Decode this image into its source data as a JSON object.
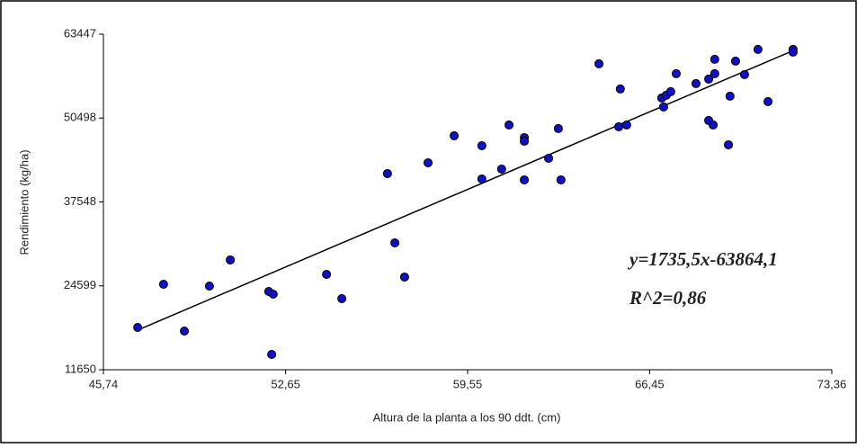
{
  "chart_data": {
    "type": "scatter",
    "xlabel": "Altura de la planta a los 90 ddt. (cm)",
    "ylabel": "Rendimiento (kg/ha)",
    "xlim": [
      45.74,
      73.36
    ],
    "xticks": [
      {
        "value": 45.74,
        "label": "45,74"
      },
      {
        "value": 52.65,
        "label": "52,65"
      },
      {
        "value": 59.55,
        "label": "59,55"
      },
      {
        "value": 66.45,
        "label": "66,45"
      },
      {
        "value": 73.36,
        "label": "73,36"
      }
    ],
    "ylim": [
      11650,
      63447
    ],
    "yticks": [
      11650,
      24599,
      37548,
      50498,
      63447
    ],
    "color": "#1010c8",
    "x": [
      47.04,
      48.02,
      48.81,
      49.76,
      50.55,
      52.01,
      52.18,
      52.12,
      54.2,
      54.78,
      56.51,
      56.79,
      57.16,
      58.05,
      59.04,
      60.09,
      60.09,
      60.84,
      61.12,
      61.7,
      61.7,
      61.7,
      62.62,
      62.99,
      63.09,
      64.53,
      65.28,
      65.34,
      65.58,
      66.91,
      66.98,
      67.08,
      67.25,
      67.46,
      68.21,
      68.69,
      68.69,
      68.86,
      68.92,
      68.92,
      69.44,
      69.5,
      69.71,
      70.05,
      70.56,
      70.94,
      71.89,
      71.89
    ],
    "values": [
      18178,
      24846,
      17623,
      24568,
      28596,
      23734,
      23318,
      14011,
      26373,
      22623,
      41930,
      31235,
      25957,
      43597,
      47764,
      46236,
      41097,
      42625,
      49431,
      47486,
      46931,
      40958,
      44292,
      48875,
      40958,
      58876,
      49153,
      54987,
      49431,
      53598,
      52209,
      54015,
      54570,
      57348,
      55820,
      50126,
      56515,
      49431,
      59570,
      57348,
      46375,
      53876,
      59293,
      57209,
      61099,
      53043,
      61099,
      60682
    ],
    "trendline": {
      "x": [
        47.04,
        71.89
      ],
      "values": [
        17775,
        60900
      ]
    },
    "annotations": [
      "y=1735,5x-63864,1",
      "R^2=0,86"
    ]
  }
}
